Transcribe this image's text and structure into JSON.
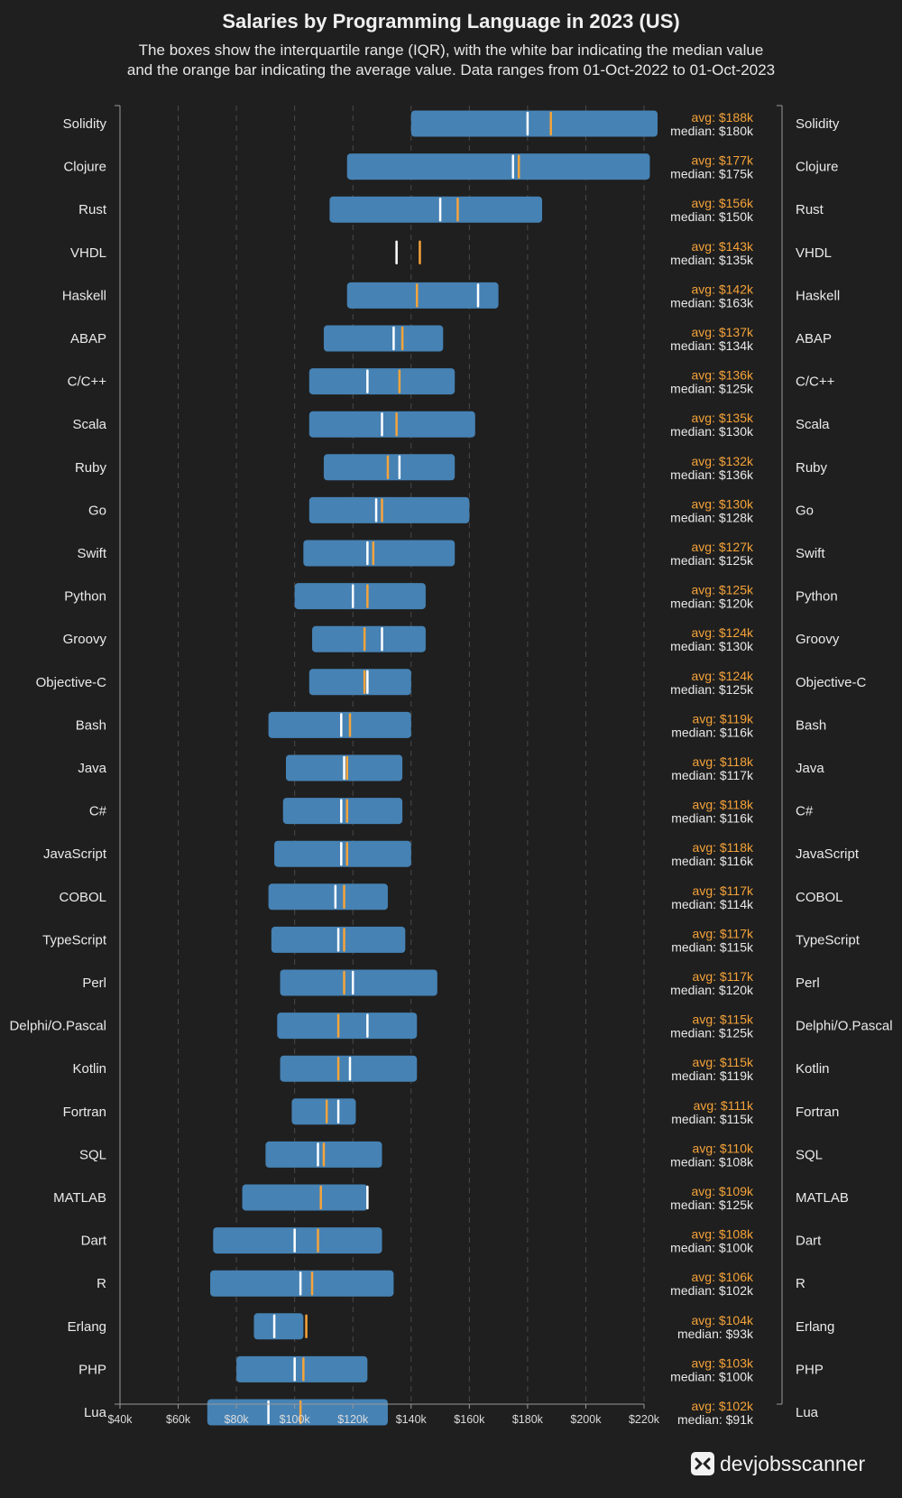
{
  "chart_data": {
    "type": "boxplot",
    "title": "Salaries by Programming Language in 2023 (US)",
    "subtitle": [
      "The boxes show the interquartile range (IQR), with the white bar indicating the median value",
      "and the orange bar indicating the average value. Data ranges from 01-Oct-2022 to 01-Oct-2023"
    ],
    "xlim": [
      40000,
      220000
    ],
    "x_ticks": [
      40000,
      60000,
      80000,
      100000,
      120000,
      140000,
      160000,
      180000,
      200000,
      220000
    ],
    "x_tick_labels": [
      "$40k",
      "$60k",
      "$80k",
      "$100k",
      "$120k",
      "$140k",
      "$160k",
      "$180k",
      "$200k",
      "$220k"
    ],
    "grid": "vertical dashed",
    "colors": {
      "box": "#4682b4",
      "median": "#ffffff",
      "average": "#f5a33a",
      "background": "#1f1f1f"
    },
    "series": [
      {
        "label": "Solidity",
        "q1": 140000,
        "q3": 225000,
        "median": 180000,
        "avg": 188000,
        "avg_label": "avg: $188k",
        "median_label": "median: $180k"
      },
      {
        "label": "Clojure",
        "q1": 118000,
        "q3": 222000,
        "median": 175000,
        "avg": 177000,
        "avg_label": "avg: $177k",
        "median_label": "median: $175k"
      },
      {
        "label": "Rust",
        "q1": 112000,
        "q3": 185000,
        "median": 150000,
        "avg": 156000,
        "avg_label": "avg: $156k",
        "median_label": "median: $150k"
      },
      {
        "label": "VHDL",
        "q1": null,
        "q3": null,
        "median": 135000,
        "avg": 143000,
        "avg_label": "avg: $143k",
        "median_label": "median: $135k"
      },
      {
        "label": "Haskell",
        "q1": 118000,
        "q3": 170000,
        "median": 163000,
        "avg": 142000,
        "avg_label": "avg: $142k",
        "median_label": "median: $163k"
      },
      {
        "label": "ABAP",
        "q1": 110000,
        "q3": 151000,
        "median": 134000,
        "avg": 137000,
        "avg_label": "avg: $137k",
        "median_label": "median: $134k"
      },
      {
        "label": "C/C++",
        "q1": 105000,
        "q3": 155000,
        "median": 125000,
        "avg": 136000,
        "avg_label": "avg: $136k",
        "median_label": "median: $125k"
      },
      {
        "label": "Scala",
        "q1": 105000,
        "q3": 162000,
        "median": 130000,
        "avg": 135000,
        "avg_label": "avg: $135k",
        "median_label": "median: $130k"
      },
      {
        "label": "Ruby",
        "q1": 110000,
        "q3": 155000,
        "median": 136000,
        "avg": 132000,
        "avg_label": "avg: $132k",
        "median_label": "median: $136k"
      },
      {
        "label": "Go",
        "q1": 105000,
        "q3": 160000,
        "median": 128000,
        "avg": 130000,
        "avg_label": "avg: $130k",
        "median_label": "median: $128k"
      },
      {
        "label": "Swift",
        "q1": 103000,
        "q3": 155000,
        "median": 125000,
        "avg": 127000,
        "avg_label": "avg: $127k",
        "median_label": "median: $125k"
      },
      {
        "label": "Python",
        "q1": 100000,
        "q3": 145000,
        "median": 120000,
        "avg": 125000,
        "avg_label": "avg: $125k",
        "median_label": "median: $120k"
      },
      {
        "label": "Groovy",
        "q1": 106000,
        "q3": 145000,
        "median": 130000,
        "avg": 124000,
        "avg_label": "avg: $124k",
        "median_label": "median: $130k"
      },
      {
        "label": "Objective-C",
        "q1": 105000,
        "q3": 140000,
        "median": 125000,
        "avg": 124000,
        "avg_label": "avg: $124k",
        "median_label": "median: $125k"
      },
      {
        "label": "Bash",
        "q1": 91000,
        "q3": 140000,
        "median": 116000,
        "avg": 119000,
        "avg_label": "avg: $119k",
        "median_label": "median: $116k"
      },
      {
        "label": "Java",
        "q1": 97000,
        "q3": 137000,
        "median": 117000,
        "avg": 118000,
        "avg_label": "avg: $118k",
        "median_label": "median: $117k"
      },
      {
        "label": "C#",
        "q1": 96000,
        "q3": 137000,
        "median": 116000,
        "avg": 118000,
        "avg_label": "avg: $118k",
        "median_label": "median: $116k"
      },
      {
        "label": "JavaScript",
        "q1": 93000,
        "q3": 140000,
        "median": 116000,
        "avg": 118000,
        "avg_label": "avg: $118k",
        "median_label": "median: $116k"
      },
      {
        "label": "COBOL",
        "q1": 91000,
        "q3": 132000,
        "median": 114000,
        "avg": 117000,
        "avg_label": "avg: $117k",
        "median_label": "median: $114k"
      },
      {
        "label": "TypeScript",
        "q1": 92000,
        "q3": 138000,
        "median": 115000,
        "avg": 117000,
        "avg_label": "avg: $117k",
        "median_label": "median: $115k"
      },
      {
        "label": "Perl",
        "q1": 95000,
        "q3": 149000,
        "median": 120000,
        "avg": 117000,
        "avg_label": "avg: $117k",
        "median_label": "median: $120k"
      },
      {
        "label": "Delphi/O.Pascal",
        "q1": 94000,
        "q3": 142000,
        "median": 125000,
        "avg": 115000,
        "avg_label": "avg: $115k",
        "median_label": "median: $125k"
      },
      {
        "label": "Kotlin",
        "q1": 95000,
        "q3": 142000,
        "median": 119000,
        "avg": 115000,
        "avg_label": "avg: $115k",
        "median_label": "median: $119k"
      },
      {
        "label": "Fortran",
        "q1": 99000,
        "q3": 121000,
        "median": 115000,
        "avg": 111000,
        "avg_label": "avg: $111k",
        "median_label": "median: $115k"
      },
      {
        "label": "SQL",
        "q1": 90000,
        "q3": 130000,
        "median": 108000,
        "avg": 110000,
        "avg_label": "avg: $110k",
        "median_label": "median: $108k"
      },
      {
        "label": "MATLAB",
        "q1": 82000,
        "q3": 125000,
        "median": 125000,
        "avg": 109000,
        "avg_label": "avg: $109k",
        "median_label": "median: $125k"
      },
      {
        "label": "Dart",
        "q1": 72000,
        "q3": 130000,
        "median": 100000,
        "avg": 108000,
        "avg_label": "avg: $108k",
        "median_label": "median: $100k"
      },
      {
        "label": "R",
        "q1": 71000,
        "q3": 134000,
        "median": 102000,
        "avg": 106000,
        "avg_label": "avg: $106k",
        "median_label": "median: $102k"
      },
      {
        "label": "Erlang",
        "q1": 86000,
        "q3": 103000,
        "median": 93000,
        "avg": 104000,
        "avg_label": "avg: $104k",
        "median_label": "median: $93k"
      },
      {
        "label": "PHP",
        "q1": 80000,
        "q3": 125000,
        "median": 100000,
        "avg": 103000,
        "avg_label": "avg: $103k",
        "median_label": "median: $100k"
      },
      {
        "label": "Lua",
        "q1": 70000,
        "q3": 132000,
        "median": 91000,
        "avg": 102000,
        "avg_label": "avg: $102k",
        "median_label": "median: $91k"
      }
    ]
  },
  "brand": {
    "name": "devjobsscanner",
    "icon": "devjobsscanner-logo-icon"
  }
}
